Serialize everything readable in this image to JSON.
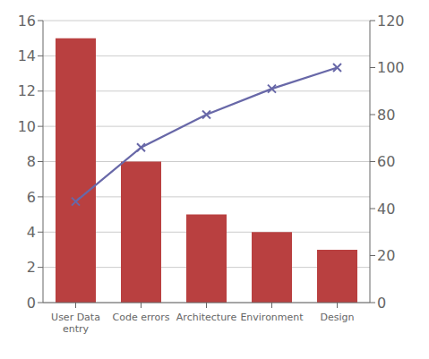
{
  "chart_data": {
    "type": "bar",
    "categories": [
      "User Data\nentry",
      "Code errors",
      "Architecture",
      "Environment",
      "Design"
    ],
    "series": [
      {
        "type": "bar",
        "color": "#b94040",
        "values": [
          15,
          8,
          5,
          4,
          3
        ]
      },
      {
        "type": "line",
        "color": "#6868a8",
        "values": [
          43,
          66,
          80,
          91,
          100
        ],
        "axis": "y2",
        "marker": "x"
      }
    ],
    "ylim": [
      0,
      16
    ],
    "yticks": [
      0,
      2,
      4,
      6,
      8,
      10,
      12,
      14,
      16
    ],
    "y2lim": [
      0,
      120
    ],
    "y2ticks": [
      0,
      20,
      40,
      60,
      80,
      100,
      120
    ],
    "grid": true
  }
}
